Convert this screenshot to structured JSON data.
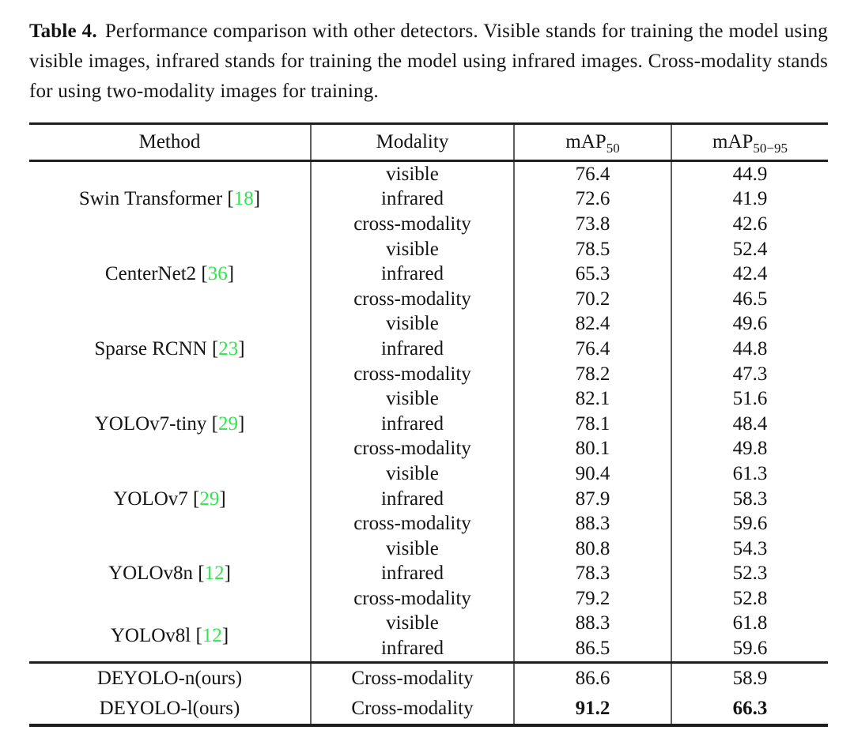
{
  "caption": {
    "label": "Table 4.",
    "text": "Performance comparison with other detectors. Visible stands for training the model using visible images, infrared stands for training the model using infrared images. Cross-modality stands for using two-modality images for training."
  },
  "table": {
    "header": {
      "method": "Method",
      "modality": "Modality",
      "map50": {
        "base": "mAP",
        "sub": "50"
      },
      "map50_95": {
        "base": "mAP",
        "sub": "50−95"
      }
    },
    "bracket_open": "[",
    "bracket_close": "]",
    "citation_color": "#2ee64e",
    "groups": [
      {
        "method": "Swin Transformer",
        "cite": "18",
        "rows": [
          {
            "modality": "visible",
            "map50": "76.4",
            "map50_95": "44.9"
          },
          {
            "modality": "infrared",
            "map50": "72.6",
            "map50_95": "41.9"
          },
          {
            "modality": "cross-modality",
            "map50": "73.8",
            "map50_95": "42.6"
          }
        ]
      },
      {
        "method": "CenterNet2",
        "cite": "36",
        "rows": [
          {
            "modality": "visible",
            "map50": "78.5",
            "map50_95": "52.4"
          },
          {
            "modality": "infrared",
            "map50": "65.3",
            "map50_95": "42.4"
          },
          {
            "modality": "cross-modality",
            "map50": "70.2",
            "map50_95": "46.5"
          }
        ]
      },
      {
        "method": "Sparse RCNN",
        "cite": "23",
        "rows": [
          {
            "modality": "visible",
            "map50": "82.4",
            "map50_95": "49.6"
          },
          {
            "modality": "infrared",
            "map50": "76.4",
            "map50_95": "44.8"
          },
          {
            "modality": "cross-modality",
            "map50": "78.2",
            "map50_95": "47.3"
          }
        ]
      },
      {
        "method": "YOLOv7-tiny",
        "cite": "29",
        "rows": [
          {
            "modality": "visible",
            "map50": "82.1",
            "map50_95": "51.6"
          },
          {
            "modality": "infrared",
            "map50": "78.1",
            "map50_95": "48.4"
          },
          {
            "modality": "cross-modality",
            "map50": "80.1",
            "map50_95": "49.8"
          }
        ]
      },
      {
        "method": "YOLOv7",
        "cite": "29",
        "rows": [
          {
            "modality": "visible",
            "map50": "90.4",
            "map50_95": "61.3"
          },
          {
            "modality": "infrared",
            "map50": "87.9",
            "map50_95": "58.3"
          },
          {
            "modality": "cross-modality",
            "map50": "88.3",
            "map50_95": "59.6"
          }
        ]
      },
      {
        "method": "YOLOv8n",
        "cite": "12",
        "rows": [
          {
            "modality": "visible",
            "map50": "80.8",
            "map50_95": "54.3"
          },
          {
            "modality": "infrared",
            "map50": "78.3",
            "map50_95": "52.3"
          },
          {
            "modality": "cross-modality",
            "map50": "79.2",
            "map50_95": "52.8"
          }
        ]
      },
      {
        "method": "YOLOv8l",
        "cite": "12",
        "rows": [
          {
            "modality": "visible",
            "map50": "88.3",
            "map50_95": "61.8"
          },
          {
            "modality": "infrared",
            "map50": "86.5",
            "map50_95": "59.6"
          }
        ]
      }
    ],
    "ours_rows": [
      {
        "method": "DEYOLO-n(ours)",
        "modality": "Cross-modality",
        "map50": "86.6",
        "map50_95": "58.9",
        "bold": false
      },
      {
        "method": "DEYOLO-l(ours)",
        "modality": "Cross-modality",
        "map50": "91.2",
        "map50_95": "66.3",
        "bold": true
      }
    ]
  }
}
